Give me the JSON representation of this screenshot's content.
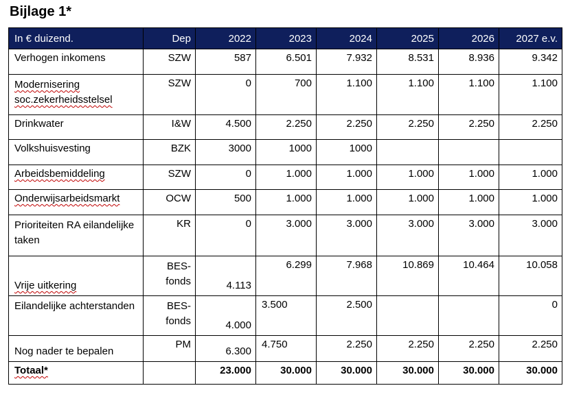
{
  "title": "Bijlage 1*",
  "table": {
    "headers": [
      "In € duizend.",
      "Dep",
      "2022",
      "2023",
      "2024",
      "2025",
      "2026",
      "2027 e.v."
    ],
    "rows": [
      {
        "name": "Verhogen inkomens",
        "dep": "SZW",
        "values": [
          "587",
          "6.501",
          "7.932",
          "8.531",
          "8.936",
          "9.342"
        ]
      },
      {
        "name": "Modernisering soc.zekerheidsstelsel",
        "dep": "SZW",
        "values": [
          "0",
          "700",
          "1.100",
          "1.100",
          "1.100",
          "1.100"
        ]
      },
      {
        "name": "Drinkwater",
        "dep": "I&W",
        "values": [
          "4.500",
          "2.250",
          "2.250",
          "2.250",
          "2.250",
          "2.250"
        ]
      },
      {
        "name": "Volkshuisvesting",
        "dep": "BZK",
        "values": [
          "3000",
          "1000",
          "1000",
          "",
          "",
          ""
        ]
      },
      {
        "name": "Arbeidsbemiddeling",
        "dep": "SZW",
        "values": [
          "0",
          "1.000",
          "1.000",
          "1.000",
          "1.000",
          "1.000"
        ]
      },
      {
        "name": "Onderwijsarbeidsmarkt",
        "dep": "OCW",
        "values": [
          "500",
          "1.000",
          "1.000",
          "1.000",
          "1.000",
          "1.000"
        ]
      },
      {
        "name": "Prioriteiten RA eilandelijke taken",
        "dep": "KR",
        "values": [
          "0",
          "3.000",
          "3.000",
          "3.000",
          "3.000",
          "3.000"
        ]
      },
      {
        "name": "Vrije uitkering",
        "dep": "BES-fonds",
        "values": [
          "4.113",
          "6.299",
          "7.968",
          "10.869",
          "10.464",
          "10.058"
        ]
      },
      {
        "name": "Eilandelijke achterstanden",
        "dep": "BES-fonds",
        "values": [
          "4.000",
          "3.500",
          "2.500",
          "",
          "",
          "0"
        ]
      },
      {
        "name": "Nog nader te bepalen",
        "dep": "PM",
        "values": [
          "6.300",
          "4.750",
          "2.250",
          "2.250",
          "2.250",
          "2.250"
        ]
      }
    ],
    "total": {
      "name": "Totaal*",
      "dep": "",
      "values": [
        "23.000",
        "30.000",
        "30.000",
        "30.000",
        "30.000",
        "30.000"
      ]
    }
  },
  "colors": {
    "header_bg": "#0f1f5c",
    "header_text": "#ffffff",
    "spellcheck": "#c00000"
  }
}
